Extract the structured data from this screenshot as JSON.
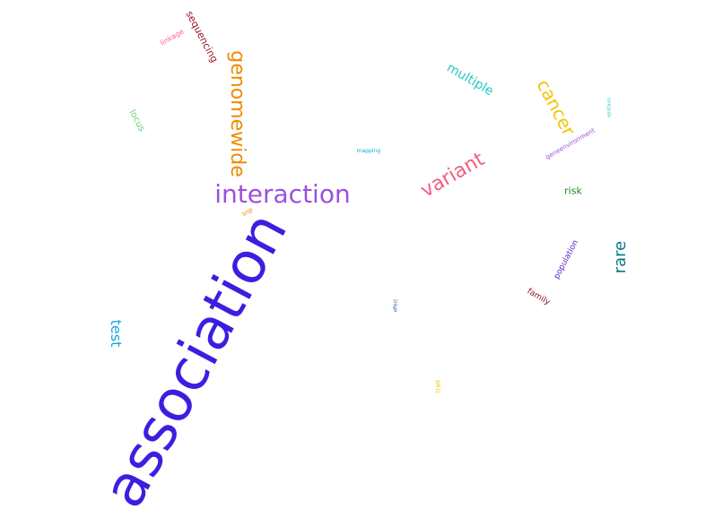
{
  "words": [
    {
      "text": "association",
      "color": "#3a1fe0"
    },
    {
      "text": "interaction",
      "color": "#9b4fe0"
    },
    {
      "text": "genomewide",
      "color": "#f08a00"
    },
    {
      "text": "variant",
      "color": "#f0607f"
    },
    {
      "text": "cancer",
      "color": "#f2c400"
    },
    {
      "text": "multiple",
      "color": "#22c9c9"
    },
    {
      "text": "rare",
      "color": "#007b8a"
    },
    {
      "text": "test",
      "color": "#1aa6e0"
    },
    {
      "text": "sequencing",
      "color": "#a0122a"
    },
    {
      "text": "linkage",
      "color": "#f06a8a"
    },
    {
      "text": "locus",
      "color": "#5fd07a"
    },
    {
      "text": "mapping",
      "color": "#1aa6e0"
    },
    {
      "text": "snp",
      "color": "#f08a00"
    },
    {
      "text": "geneenvironment",
      "color": "#9b4fe0"
    },
    {
      "text": "risk",
      "color": "#1a8a1a"
    },
    {
      "text": "epistasis",
      "color": "#22c9c9"
    },
    {
      "text": "population",
      "color": "#5a28d0"
    },
    {
      "text": "family",
      "color": "#8a1020"
    },
    {
      "text": "effect",
      "color": "#1a4aa0"
    },
    {
      "text": "trait",
      "color": "#f2c400"
    }
  ]
}
